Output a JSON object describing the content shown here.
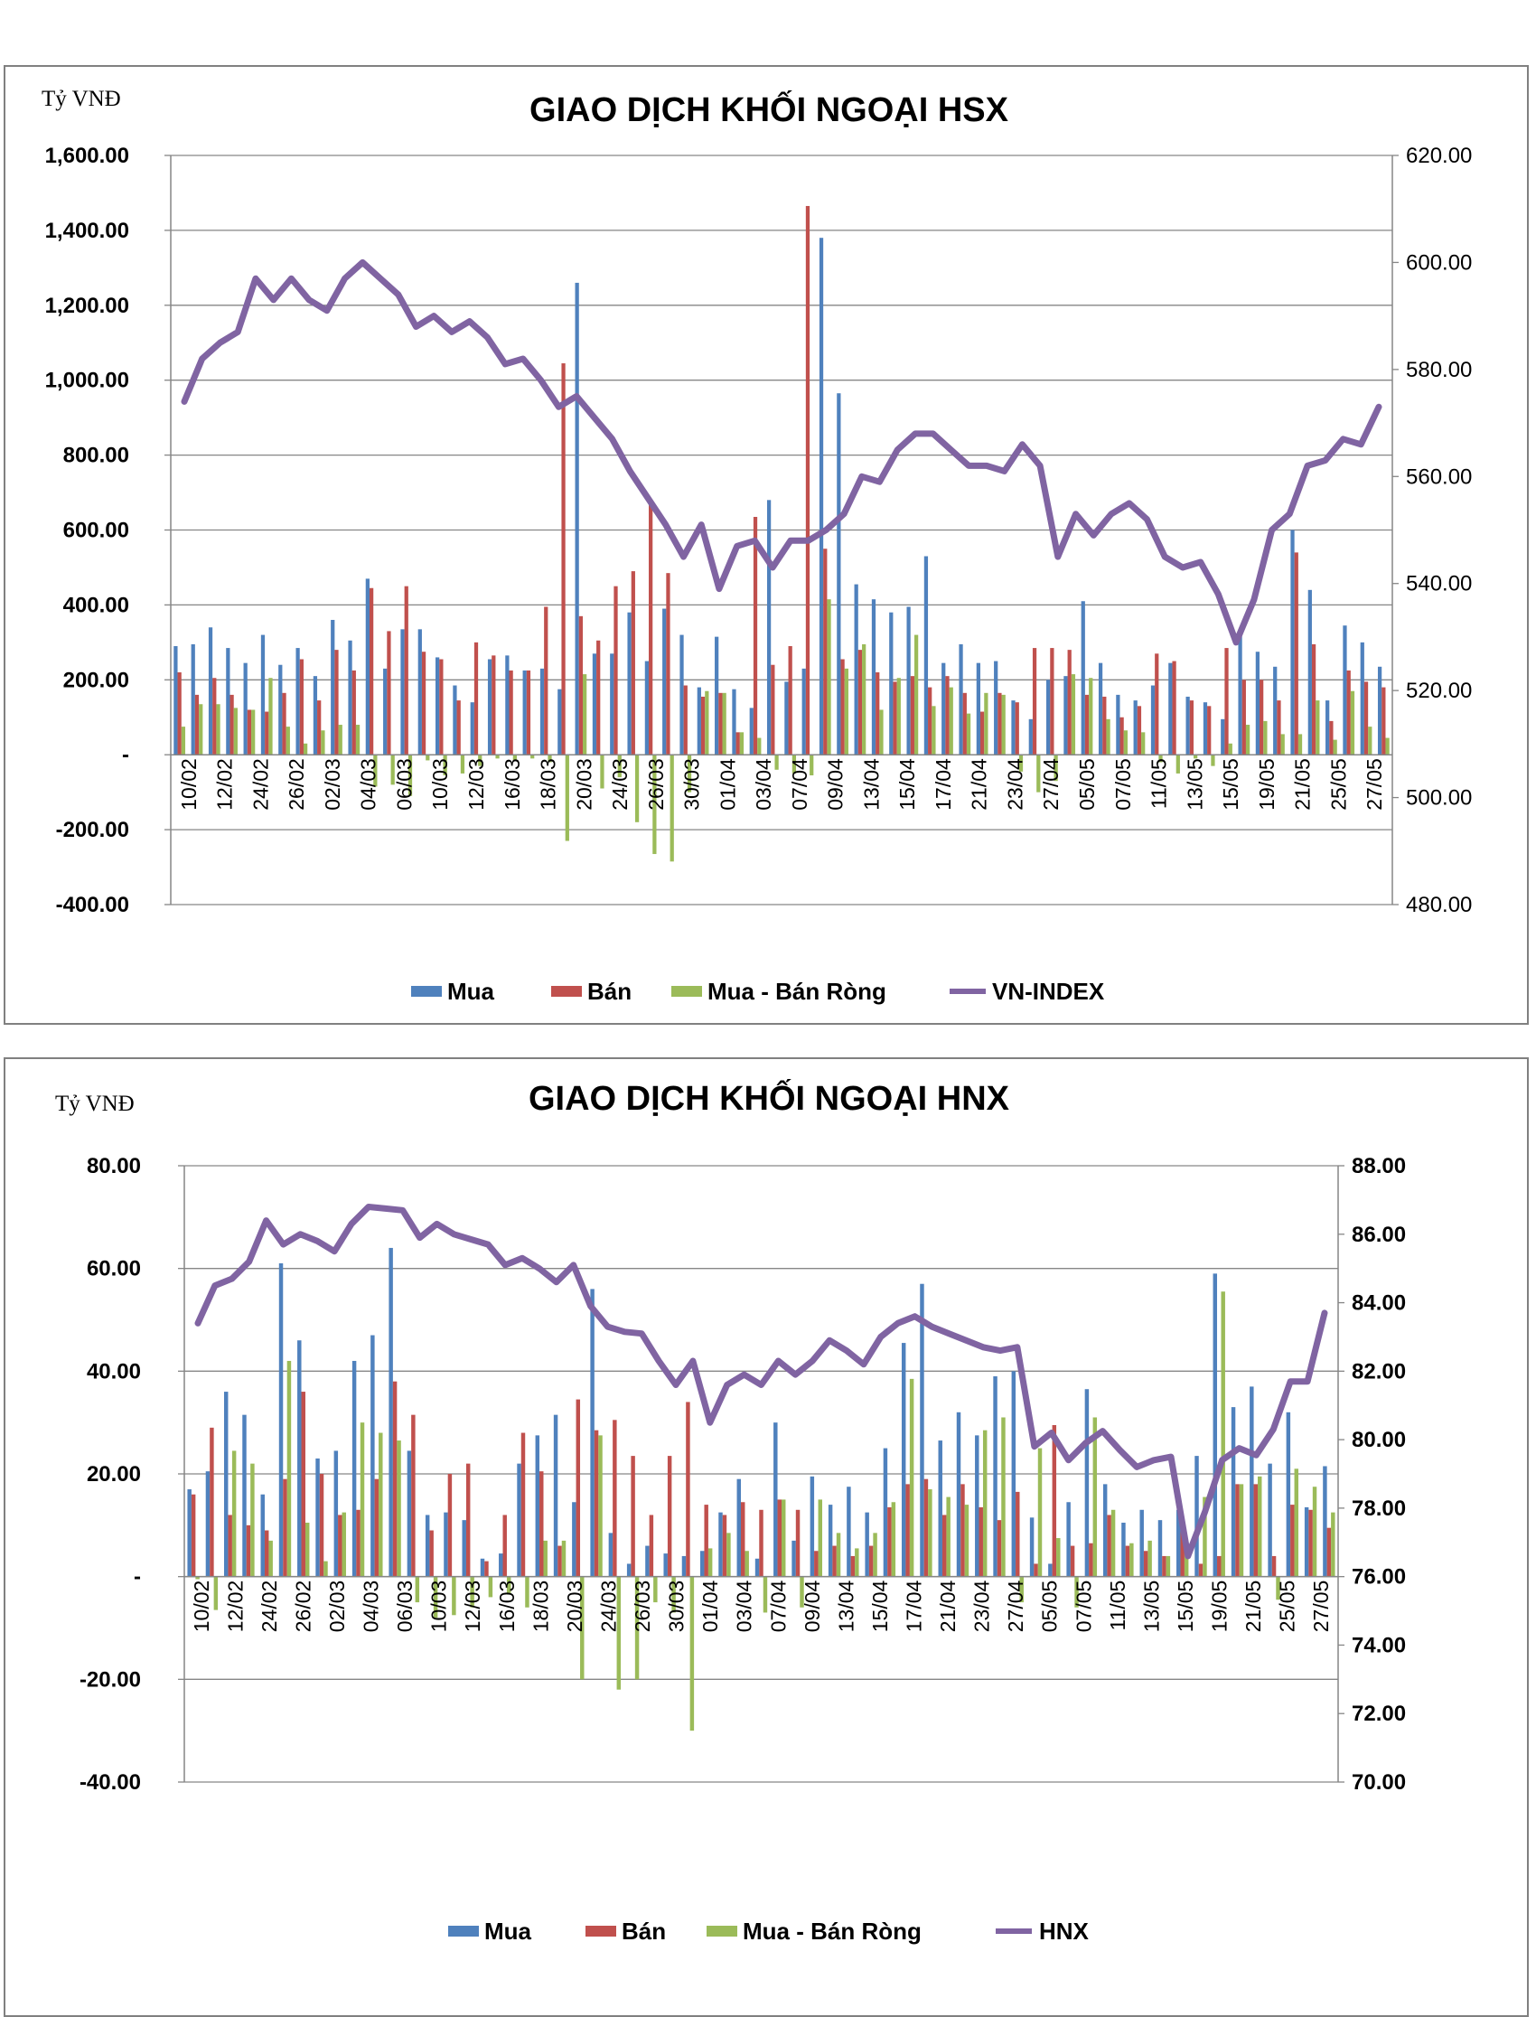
{
  "chart_data": [
    {
      "type": "bar",
      "title": "GIAO DỊCH KHỐI NGOẠI HSX",
      "unit_label": "Tỷ VNĐ",
      "ylim": [
        -400,
        1600
      ],
      "y_ticks": [
        "1,600.00",
        "1,400.00",
        "1,200.00",
        "1,000.00",
        "800.00",
        "600.00",
        "400.00",
        "200.00",
        "-",
        "-200.00",
        "-400.00"
      ],
      "y2lim": [
        480,
        620
      ],
      "y2_ticks": [
        "620.00",
        "600.00",
        "580.00",
        "560.00",
        "540.00",
        "520.00",
        "500.00",
        "480.00"
      ],
      "x_tick_labels": [
        "10/02",
        "12/02",
        "24/02",
        "26/02",
        "02/03",
        "04/03",
        "06/03",
        "10/03",
        "12/03",
        "16/03",
        "18/03",
        "20/03",
        "24/03",
        "26/03",
        "30/03",
        "01/04",
        "03/04",
        "07/04",
        "09/04",
        "13/04",
        "15/04",
        "17/04",
        "21/04",
        "23/04",
        "27/04",
        "05/05",
        "07/05",
        "11/05",
        "13/05",
        "15/05",
        "19/05",
        "21/05",
        "25/05",
        "27/05"
      ],
      "grid": true,
      "legend_position": "bottom",
      "colors": {
        "mua": "#4F81BD",
        "ban": "#C0504D",
        "rong": "#9BBB59",
        "index": "#8064A2"
      },
      "series": [
        {
          "name": "Mua",
          "type": "bar",
          "values": [
            290,
            295,
            340,
            285,
            245,
            320,
            240,
            285,
            210,
            360,
            305,
            470,
            230,
            335,
            335,
            260,
            185,
            140,
            255,
            265,
            225,
            230,
            175,
            1260,
            270,
            270,
            380,
            250,
            390,
            320,
            180,
            315,
            175,
            125,
            680,
            195,
            230,
            1380,
            965,
            455,
            415,
            380,
            395,
            530,
            245,
            295,
            245,
            250,
            145,
            95,
            200,
            210,
            410,
            245,
            160,
            145,
            185,
            245,
            155,
            140,
            95,
            330,
            275,
            235,
            600,
            440,
            145,
            345,
            300,
            235
          ]
        },
        {
          "name": "Bán",
          "type": "bar",
          "values": [
            220,
            160,
            205,
            160,
            120,
            115,
            165,
            255,
            145,
            280,
            225,
            445,
            330,
            450,
            275,
            255,
            145,
            300,
            265,
            225,
            225,
            395,
            1045,
            370,
            305,
            450,
            490,
            670,
            485,
            185,
            155,
            165,
            60,
            635,
            240,
            290,
            1465,
            550,
            255,
            280,
            220,
            195,
            210,
            180,
            210,
            165,
            115,
            165,
            140,
            285,
            285,
            280,
            160,
            155,
            100,
            130,
            270,
            250,
            145,
            130,
            285,
            200,
            200,
            145,
            540,
            295,
            90,
            225,
            195,
            180
          ]
        },
        {
          "name": "Mua - Bán Ròng",
          "type": "bar",
          "values": [
            75,
            135,
            135,
            125,
            120,
            205,
            75,
            30,
            65,
            80,
            80,
            -85,
            -80,
            -110,
            -15,
            -55,
            -50,
            -30,
            -10,
            -15,
            -10,
            -20,
            -230,
            215,
            -90,
            -60,
            -180,
            -265,
            -285,
            -100,
            170,
            165,
            60,
            45,
            -40,
            -50,
            -55,
            415,
            230,
            295,
            120,
            205,
            320,
            130,
            180,
            110,
            165,
            160,
            -45,
            -100,
            -70,
            215,
            205,
            95,
            65,
            60,
            -20,
            -50,
            -10,
            -30,
            30,
            80,
            90,
            55,
            55,
            145,
            40,
            170,
            75,
            45
          ]
        },
        {
          "name": "VN-INDEX",
          "type": "line",
          "values": [
            574,
            582,
            585,
            587,
            597,
            593,
            597,
            593,
            591,
            597,
            600,
            597,
            594,
            588,
            590,
            587,
            589,
            586,
            581,
            582,
            578,
            573,
            575,
            571,
            567,
            561,
            556,
            551,
            545,
            551,
            539,
            547,
            548,
            543,
            548,
            548,
            550,
            553,
            560,
            559,
            565,
            568,
            568,
            565,
            562,
            562,
            561,
            566,
            562,
            545,
            553,
            549,
            553,
            555,
            552,
            545,
            543,
            544,
            538,
            529,
            537,
            550,
            553,
            562,
            563,
            567,
            566,
            573
          ]
        }
      ]
    },
    {
      "type": "bar",
      "title": "GIAO DỊCH KHỐI NGOẠI HNX",
      "unit_label": "Tỷ VNĐ",
      "ylim": [
        -40,
        80
      ],
      "y_ticks": [
        "80.00",
        "60.00",
        "40.00",
        "20.00",
        "-",
        "-20.00",
        "-40.00"
      ],
      "y2lim": [
        70,
        88
      ],
      "y2_ticks": [
        "88.00",
        "86.00",
        "84.00",
        "82.00",
        "80.00",
        "78.00",
        "76.00",
        "74.00",
        "72.00",
        "70.00"
      ],
      "x_tick_labels": [
        "10/02",
        "12/02",
        "24/02",
        "26/02",
        "02/03",
        "04/03",
        "06/03",
        "10/03",
        "12/03",
        "16/03",
        "18/03",
        "20/03",
        "24/03",
        "26/03",
        "30/03",
        "01/04",
        "03/04",
        "07/04",
        "09/04",
        "13/04",
        "15/04",
        "17/04",
        "21/04",
        "23/04",
        "27/04",
        "05/05",
        "07/05",
        "11/05",
        "13/05",
        "15/05",
        "19/05",
        "21/05",
        "25/05",
        "27/05"
      ],
      "grid": true,
      "legend_position": "bottom",
      "colors": {
        "mua": "#4F81BD",
        "ban": "#C0504D",
        "rong": "#9BBB59",
        "index": "#8064A2"
      },
      "series": [
        {
          "name": "Mua",
          "type": "bar",
          "values": [
            17,
            20.5,
            36,
            31.5,
            16,
            61,
            46,
            23,
            24.5,
            42,
            47,
            64,
            24.5,
            12,
            12.5,
            11,
            3.5,
            4.5,
            22,
            27.5,
            31.5,
            14.5,
            56,
            8.5,
            2.5,
            6,
            4.5,
            4,
            5,
            12.5,
            19,
            3.5,
            30,
            7,
            19.5,
            14,
            17.5,
            12.5,
            25,
            45.5,
            57,
            26.5,
            32,
            27.5,
            39,
            40,
            11.5,
            2.5,
            14.5,
            36.5,
            18,
            10.5,
            13,
            11,
            13,
            23.5,
            59,
            33,
            37,
            22,
            32,
            13.5,
            21.5
          ]
        },
        {
          "name": "Bán",
          "type": "bar",
          "values": [
            16,
            29,
            12,
            10,
            9,
            19,
            36,
            20,
            12,
            13,
            19,
            38,
            31.5,
            9,
            20,
            22,
            3,
            12,
            28,
            20.5,
            6,
            34.5,
            28.5,
            30.5,
            23.5,
            12,
            23.5,
            34,
            14,
            12,
            14.5,
            13,
            15,
            13,
            5,
            6,
            4,
            6,
            13.5,
            18,
            19,
            12,
            18,
            13.5,
            11,
            16.5,
            2.5,
            29.5,
            6,
            6.5,
            12,
            6,
            5,
            4,
            10,
            2.5,
            4,
            18,
            18,
            4,
            14,
            13,
            9.5
          ]
        },
        {
          "name": "Mua - Bán Ròng",
          "type": "bar",
          "values": [
            -0.5,
            -6.5,
            24.5,
            22,
            7,
            42,
            10.5,
            3,
            12.5,
            30,
            28,
            26.5,
            -5,
            -8,
            -7.5,
            -6,
            -4,
            -3.5,
            -6,
            7,
            7,
            -20,
            27.5,
            -22,
            -20,
            -5,
            -7,
            -30,
            5.5,
            8.5,
            5,
            -7,
            15,
            -6,
            15,
            8.5,
            5.5,
            8.5,
            14.5,
            38.5,
            17,
            15.5,
            14,
            28.5,
            31,
            -5,
            25,
            7.5,
            -6,
            31,
            13,
            6.5,
            7,
            4,
            6.5,
            15.5,
            55.5,
            18,
            19.5,
            -4.5,
            21,
            17.5,
            12.5
          ]
        },
        {
          "name": "HNX",
          "type": "line",
          "values": [
            83.4,
            84.5,
            84.7,
            85.2,
            86.4,
            85.7,
            86,
            85.8,
            85.5,
            86.3,
            86.8,
            86.75,
            86.7,
            85.9,
            86.3,
            86,
            85.85,
            85.7,
            85.1,
            85.3,
            85.0,
            84.6,
            85.1,
            83.9,
            83.3,
            83.15,
            83.1,
            82.3,
            81.6,
            82.3,
            80.5,
            81.6,
            81.9,
            81.6,
            82.3,
            81.9,
            82.3,
            82.9,
            82.6,
            82.2,
            83.0,
            83.4,
            83.6,
            83.3,
            83.1,
            82.9,
            82.7,
            82.6,
            82.7,
            79.8,
            80.2,
            79.4,
            79.9,
            80.25,
            79.7,
            79.2,
            79.4,
            79.5,
            76.6,
            77.9,
            79.4,
            79.75,
            79.55,
            80.3,
            81.7,
            81.7,
            83.7
          ]
        }
      ]
    }
  ]
}
